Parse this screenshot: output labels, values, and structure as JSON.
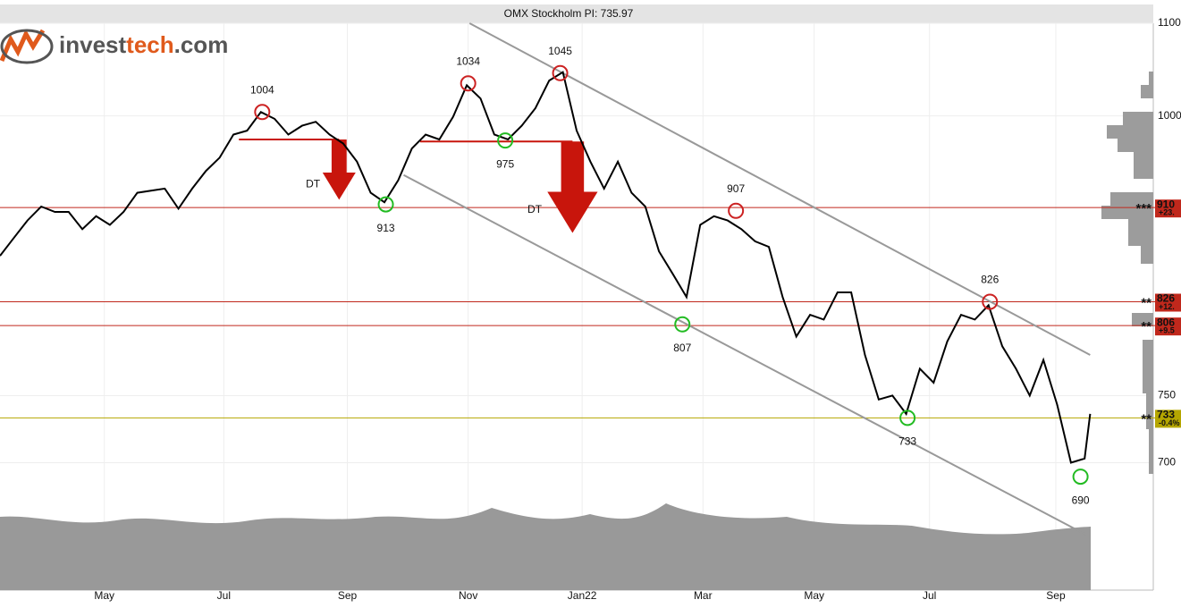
{
  "chart_data": {
    "type": "line",
    "title": "OMX Stockholm PI: 735.97",
    "logo": [
      "invest",
      "tech",
      ".com"
    ],
    "log_scale": true,
    "grid": true,
    "xlim": [
      0,
      84
    ],
    "ylim": [
      614,
      1100
    ],
    "yticks": [
      700,
      750,
      1000,
      1100
    ],
    "xticks": [
      {
        "value": 7.6,
        "label": "May"
      },
      {
        "value": 16.3,
        "label": "Jul"
      },
      {
        "value": 25.3,
        "label": "Sep"
      },
      {
        "value": 34.1,
        "label": "Nov"
      },
      {
        "value": 42.4,
        "label": "Jan22"
      },
      {
        "value": 51.2,
        "label": "Mar"
      },
      {
        "value": 59.3,
        "label": "May"
      },
      {
        "value": 67.7,
        "label": "Jul"
      },
      {
        "value": 76.9,
        "label": "Sep"
      }
    ],
    "series": [
      {
        "name": "OMX Stockholm PI",
        "color": "#000000",
        "x": [
          0,
          1,
          2,
          3,
          4,
          5,
          6,
          7,
          8,
          9,
          10,
          11,
          12,
          13,
          14,
          15,
          16,
          17,
          18,
          19,
          20,
          21,
          22,
          23,
          24,
          25,
          26,
          27,
          28,
          29,
          30,
          31,
          32,
          33,
          34,
          35,
          36,
          37,
          38,
          39,
          40,
          41,
          42,
          43,
          44,
          45,
          46,
          47,
          48,
          49,
          50,
          51,
          52,
          53,
          54,
          55,
          56,
          57,
          58,
          59,
          60,
          61,
          62,
          63,
          64,
          65,
          66,
          67,
          68,
          69,
          70,
          71,
          72,
          73,
          74,
          75,
          76,
          77,
          78,
          79,
          79.4
        ],
        "values": [
          866,
          882,
          898,
          911,
          906,
          906,
          890,
          902,
          894,
          906,
          924,
          926,
          928,
          909,
          928,
          945,
          958,
          981,
          985,
          1004,
          997,
          981,
          990,
          994,
          981,
          972,
          954,
          924,
          915,
          936,
          967,
          981,
          976,
          999,
          1032,
          1018,
          981,
          976,
          990,
          1008,
          1037,
          1046,
          985,
          954,
          928,
          954,
          924,
          911,
          870,
          850,
          830,
          894,
          902,
          898,
          890,
          879,
          874,
          830,
          797,
          815,
          811,
          834,
          834,
          782,
          747,
          750,
          736,
          771,
          760,
          793,
          815,
          811,
          823,
          789,
          771,
          750,
          778,
          743,
          700,
          703,
          736
        ]
      }
    ],
    "annotations": [
      {
        "x": 19.1,
        "y": 1004,
        "color": "#cc2222"
      },
      {
        "x": 34.1,
        "y": 1034,
        "color": "#cc2222"
      },
      {
        "x": 40.8,
        "y": 1045,
        "color": "#cc2222"
      },
      {
        "x": 53.6,
        "y": 907,
        "color": "#cc2222"
      },
      {
        "x": 72.1,
        "y": 826,
        "color": "#cc2222"
      },
      {
        "x": 28.1,
        "y": 913,
        "color": "#22bb22"
      },
      {
        "x": 36.8,
        "y": 975,
        "color": "#22bb22"
      },
      {
        "x": 49.7,
        "y": 807,
        "color": "#22bb22"
      },
      {
        "x": 66.1,
        "y": 733,
        "color": "#22bb22"
      },
      {
        "x": 78.7,
        "y": 690,
        "color": "#22bb22"
      }
    ],
    "levels": [
      {
        "value": 910,
        "stars": "***",
        "change": "+23.",
        "color": "#c0281c"
      },
      {
        "value": 826,
        "stars": "**",
        "change": "+12.",
        "color": "#c0281c"
      },
      {
        "value": 806,
        "stars": "**",
        "change": "+9.5",
        "color": "#c0281c"
      },
      {
        "value": 733,
        "stars": "**",
        "change": "-0.4%",
        "color": "#b5a600"
      }
    ],
    "trend_lines": [
      {
        "x": [
          34.2,
          79.4
        ],
        "y": [
          1100,
          782
        ],
        "color": "#999999"
      },
      {
        "x": [
          29.4,
          79.1
        ],
        "y": [
          941,
          650
        ],
        "color": "#999999"
      }
    ],
    "signals": [
      {
        "label": "DT",
        "x": [
          17.4,
          24.7
        ],
        "y": 976,
        "color": "#c8150c"
      },
      {
        "label": "DT",
        "x": [
          30.6,
          41.7
        ],
        "y": 974,
        "color": "#c8150c"
      }
    ]
  }
}
